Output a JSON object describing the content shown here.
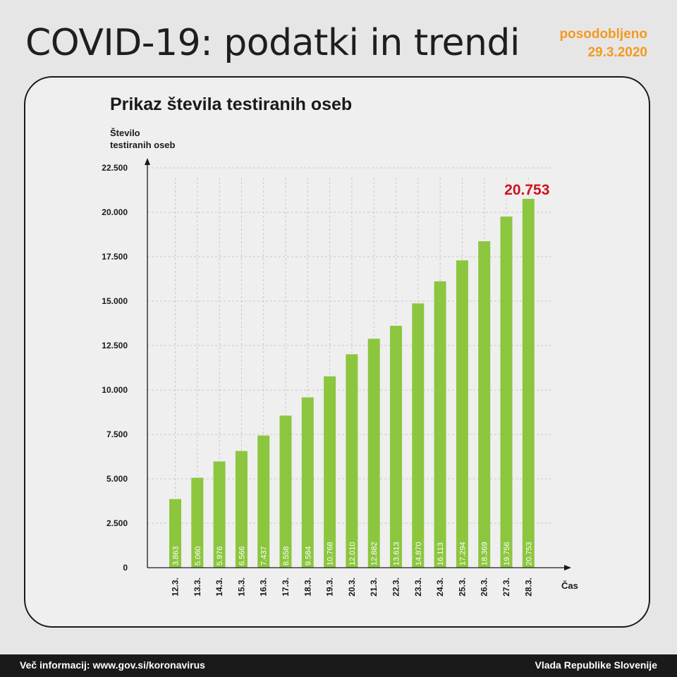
{
  "header": {
    "title": "COVID-19: podatki in trendi",
    "updated_label": "posodobljeno",
    "updated_date": "29.3.2020"
  },
  "footer": {
    "info": "Več informacij: www.gov.si/koronavirus",
    "org": "Vlada Republike Slovenije"
  },
  "colors": {
    "bar": "#8cc63f",
    "highlight": "#d0121b",
    "accent": "#f39a1e"
  },
  "chart_data": {
    "type": "bar",
    "title": "Prikaz števila testiranih oseb",
    "ylabel": [
      "Število",
      "testiranih oseb"
    ],
    "xlabel": "Čas",
    "categories": [
      "12.3.",
      "13.3.",
      "14.3.",
      "15.3.",
      "16.3.",
      "17.3.",
      "18.3.",
      "19.3.",
      "20.3.",
      "21.3.",
      "22.3.",
      "23.3.",
      "24.3.",
      "25.3.",
      "26.3.",
      "27.3.",
      "28.3."
    ],
    "values": [
      3863,
      5060,
      5976,
      6566,
      7437,
      8558,
      9584,
      10768,
      12010,
      12882,
      13613,
      14870,
      16113,
      17294,
      18369,
      19756,
      20753
    ],
    "value_labels": [
      "3.863",
      "5.060",
      "5.976",
      "6.566",
      "7.437",
      "8.558",
      "9.584",
      "10.768",
      "12.010",
      "12.882",
      "13.613",
      "14.870",
      "16.113",
      "17.294",
      "18.369",
      "19.756",
      "20.753"
    ],
    "highlight_label": "20.753",
    "yticks": [
      0,
      2500,
      5000,
      7500,
      10000,
      12500,
      15000,
      17500,
      20000,
      22500
    ],
    "ytick_labels": [
      "0",
      "2.500",
      "5.000",
      "7.500",
      "10.000",
      "12.500",
      "15.000",
      "17.500",
      "20.000",
      "22.500"
    ],
    "ylim": [
      0,
      22500
    ],
    "grid": true
  }
}
